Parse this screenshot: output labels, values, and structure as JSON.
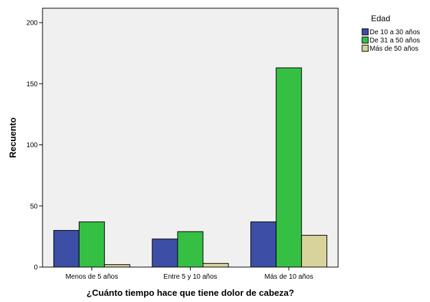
{
  "chart_data": {
    "type": "bar",
    "categories": [
      "Menos de 5 años",
      "Entre 5 y 10 años",
      "Más de 10 años"
    ],
    "series": [
      {
        "name": "De 10 a 30 años",
        "values": [
          30,
          23,
          37
        ],
        "color": "#3c4ea6"
      },
      {
        "name": "De 31 a 50 años",
        "values": [
          37,
          29,
          163
        ],
        "color": "#35c044"
      },
      {
        "name": "Más de 50 años",
        "values": [
          2,
          3,
          26
        ],
        "color": "#d8d39a"
      }
    ],
    "xlabel": "¿Cuánto tiempo hace que tiene dolor de cabeza?",
    "ylabel": "Recuento",
    "ylim": [
      0,
      200
    ],
    "yticks": [
      0,
      50,
      100,
      150,
      200
    ],
    "legend_title": "Edad",
    "legend_position": "top-right",
    "plot_background": "#f0f0f0",
    "grid": false
  }
}
